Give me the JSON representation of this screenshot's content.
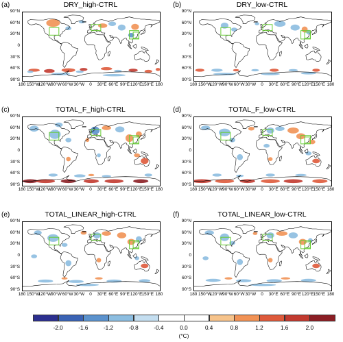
{
  "figure": {
    "panels": [
      {
        "letter": "(a)",
        "title": "DRY_high-CTRL"
      },
      {
        "letter": "(b)",
        "title": "DRY_low-CTRL"
      },
      {
        "letter": "(c)",
        "title": "TOTAL_F_high-CTRL"
      },
      {
        "letter": "(d)",
        "title": "TOTAL_F_low-CTRL"
      },
      {
        "letter": "(e)",
        "title": "TOTAL_LINEAR_high-CTRL"
      },
      {
        "letter": "(f)",
        "title": "TOTAL_LINEAR_low-CTRL"
      }
    ],
    "lat_labels": [
      "90°N",
      "60°N",
      "30°N",
      "0",
      "30°S",
      "60°S",
      "90°S"
    ],
    "lon_labels": [
      "180",
      "150°W",
      "120°W",
      "90°W",
      "60°W",
      "30°W",
      "0",
      "30°E",
      "60°E",
      "90°E",
      "120°E",
      "150°E",
      "180"
    ],
    "colorbar": {
      "ticks": [
        "-2.0",
        "-1.6",
        "-1.2",
        "-0.8",
        "-0.4",
        "0.0",
        "0.4",
        "0.8",
        "1.2",
        "1.6",
        "2.0"
      ],
      "colors": [
        "#2c2f8f",
        "#3a63b4",
        "#5b92cd",
        "#8cbde0",
        "#c4def0",
        "#ffffff",
        "#ffffff",
        "#f6c38b",
        "#f19255",
        "#de5a3b",
        "#c23a2f",
        "#8b1e24"
      ],
      "unit": "(°C)"
    },
    "colors": {
      "frame": "#000000",
      "box": "#66cc33",
      "warm": "#f19255",
      "cool": "#8cbde0"
    }
  }
}
